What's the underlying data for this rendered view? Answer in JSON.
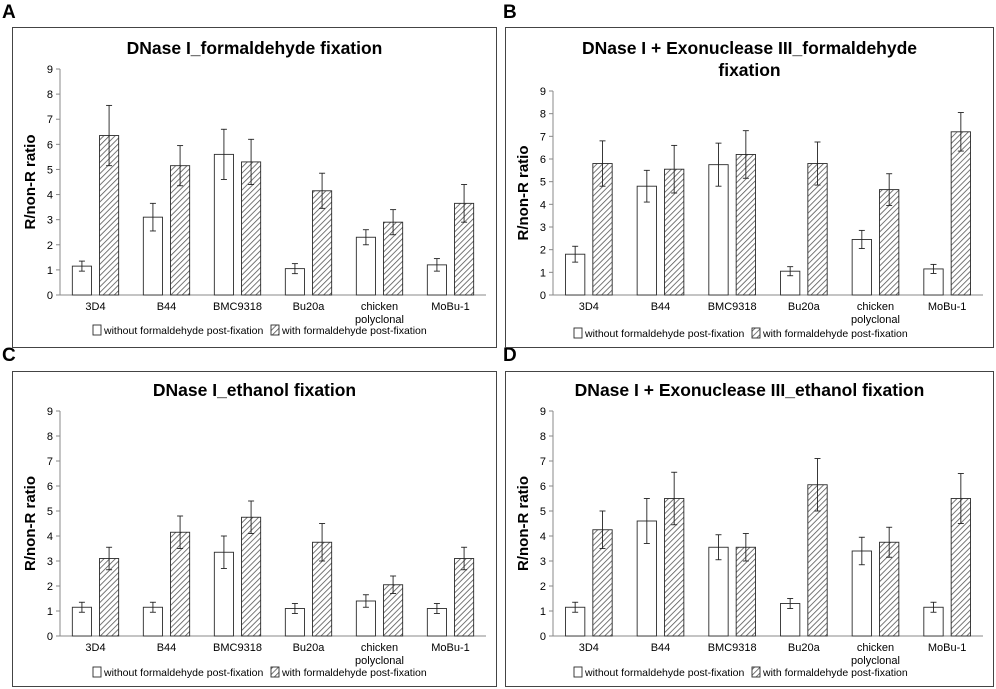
{
  "chart_data": [
    {
      "panel": "A",
      "type": "bar",
      "title": "DNase I_formaldehyde fixation",
      "ylabel": "R/non-R ratio",
      "xlabel": "",
      "ylim": [
        0,
        9
      ],
      "yticks": [
        "0",
        "1",
        "2",
        "3",
        "4",
        "5",
        "6",
        "7",
        "8",
        "9"
      ],
      "grid": false,
      "legend_position": "bottom",
      "categories": [
        "3D4",
        "B44",
        "BMC9318",
        "Bu20a",
        "chicken\npolyclonal",
        "MoBu-1"
      ],
      "series": [
        {
          "name": "without formaldehyde post-fixation",
          "values": [
            1.15,
            3.1,
            5.6,
            1.05,
            2.3,
            1.2
          ],
          "errors": [
            0.2,
            0.55,
            1.0,
            0.2,
            0.3,
            0.25
          ]
        },
        {
          "name": "with formaldehyde post-fixation",
          "values": [
            6.35,
            5.15,
            5.3,
            4.15,
            2.9,
            3.65
          ],
          "errors": [
            1.2,
            0.8,
            0.9,
            0.7,
            0.5,
            0.75
          ]
        }
      ]
    },
    {
      "panel": "B",
      "type": "bar",
      "title": "DNase I + Exonuclease III_formaldehyde\nfixation",
      "ylabel": "R/non-R ratio",
      "xlabel": "",
      "ylim": [
        0,
        9
      ],
      "yticks": [
        "0",
        "1",
        "2",
        "3",
        "4",
        "5",
        "6",
        "7",
        "8",
        "9"
      ],
      "grid": false,
      "legend_position": "bottom",
      "categories": [
        "3D4",
        "B44",
        "BMC9318",
        "Bu20a",
        "chicken\npolyclonal",
        "MoBu-1"
      ],
      "series": [
        {
          "name": "without formaldehyde post-fixation",
          "values": [
            1.8,
            4.8,
            5.75,
            1.05,
            2.45,
            1.15
          ],
          "errors": [
            0.35,
            0.7,
            0.95,
            0.2,
            0.4,
            0.2
          ]
        },
        {
          "name": "with formaldehyde post-fixation",
          "values": [
            5.8,
            5.55,
            6.2,
            5.8,
            4.65,
            7.2
          ],
          "errors": [
            1.0,
            1.05,
            1.05,
            0.95,
            0.7,
            0.85
          ]
        }
      ]
    },
    {
      "panel": "C",
      "type": "bar",
      "title": "DNase I_ethanol fixation",
      "ylabel": "R/non-R ratio",
      "xlabel": "",
      "ylim": [
        0,
        9
      ],
      "yticks": [
        "0",
        "1",
        "2",
        "3",
        "4",
        "5",
        "6",
        "7",
        "8",
        "9"
      ],
      "grid": false,
      "legend_position": "bottom",
      "categories": [
        "3D4",
        "B44",
        "BMC9318",
        "Bu20a",
        "chicken\npolyclonal",
        "MoBu-1"
      ],
      "series": [
        {
          "name": "without formaldehyde post-fixation",
          "values": [
            1.15,
            1.15,
            3.35,
            1.1,
            1.4,
            1.1
          ],
          "errors": [
            0.2,
            0.2,
            0.65,
            0.2,
            0.25,
            0.2
          ]
        },
        {
          "name": "with formaldehyde post-fixation",
          "values": [
            3.1,
            4.15,
            4.75,
            3.75,
            2.05,
            3.1
          ],
          "errors": [
            0.45,
            0.65,
            0.65,
            0.75,
            0.35,
            0.45
          ]
        }
      ]
    },
    {
      "panel": "D",
      "type": "bar",
      "title": "DNase I + Exonuclease III_ethanol fixation",
      "ylabel": "R/non-R ratio",
      "xlabel": "",
      "ylim": [
        0,
        9
      ],
      "yticks": [
        "0",
        "1",
        "2",
        "3",
        "4",
        "5",
        "6",
        "7",
        "8",
        "9"
      ],
      "grid": false,
      "legend_position": "bottom",
      "categories": [
        "3D4",
        "B44",
        "BMC9318",
        "Bu20a",
        "chicken\npolyclonal",
        "MoBu-1"
      ],
      "series": [
        {
          "name": "without formaldehyde post-fixation",
          "values": [
            1.15,
            4.6,
            3.55,
            1.3,
            3.4,
            1.15
          ],
          "errors": [
            0.2,
            0.9,
            0.5,
            0.2,
            0.55,
            0.2
          ]
        },
        {
          "name": "with formaldehyde post-fixation",
          "values": [
            4.25,
            5.5,
            3.55,
            6.05,
            3.75,
            5.5
          ],
          "errors": [
            0.75,
            1.05,
            0.55,
            1.05,
            0.6,
            1.0
          ]
        }
      ]
    }
  ],
  "colors": {
    "bar_fill_plain": "#ffffff",
    "bar_stroke": "#2b2b2b",
    "hatch_stroke": "#555555",
    "axis": "#888888",
    "frame": "#444444"
  }
}
